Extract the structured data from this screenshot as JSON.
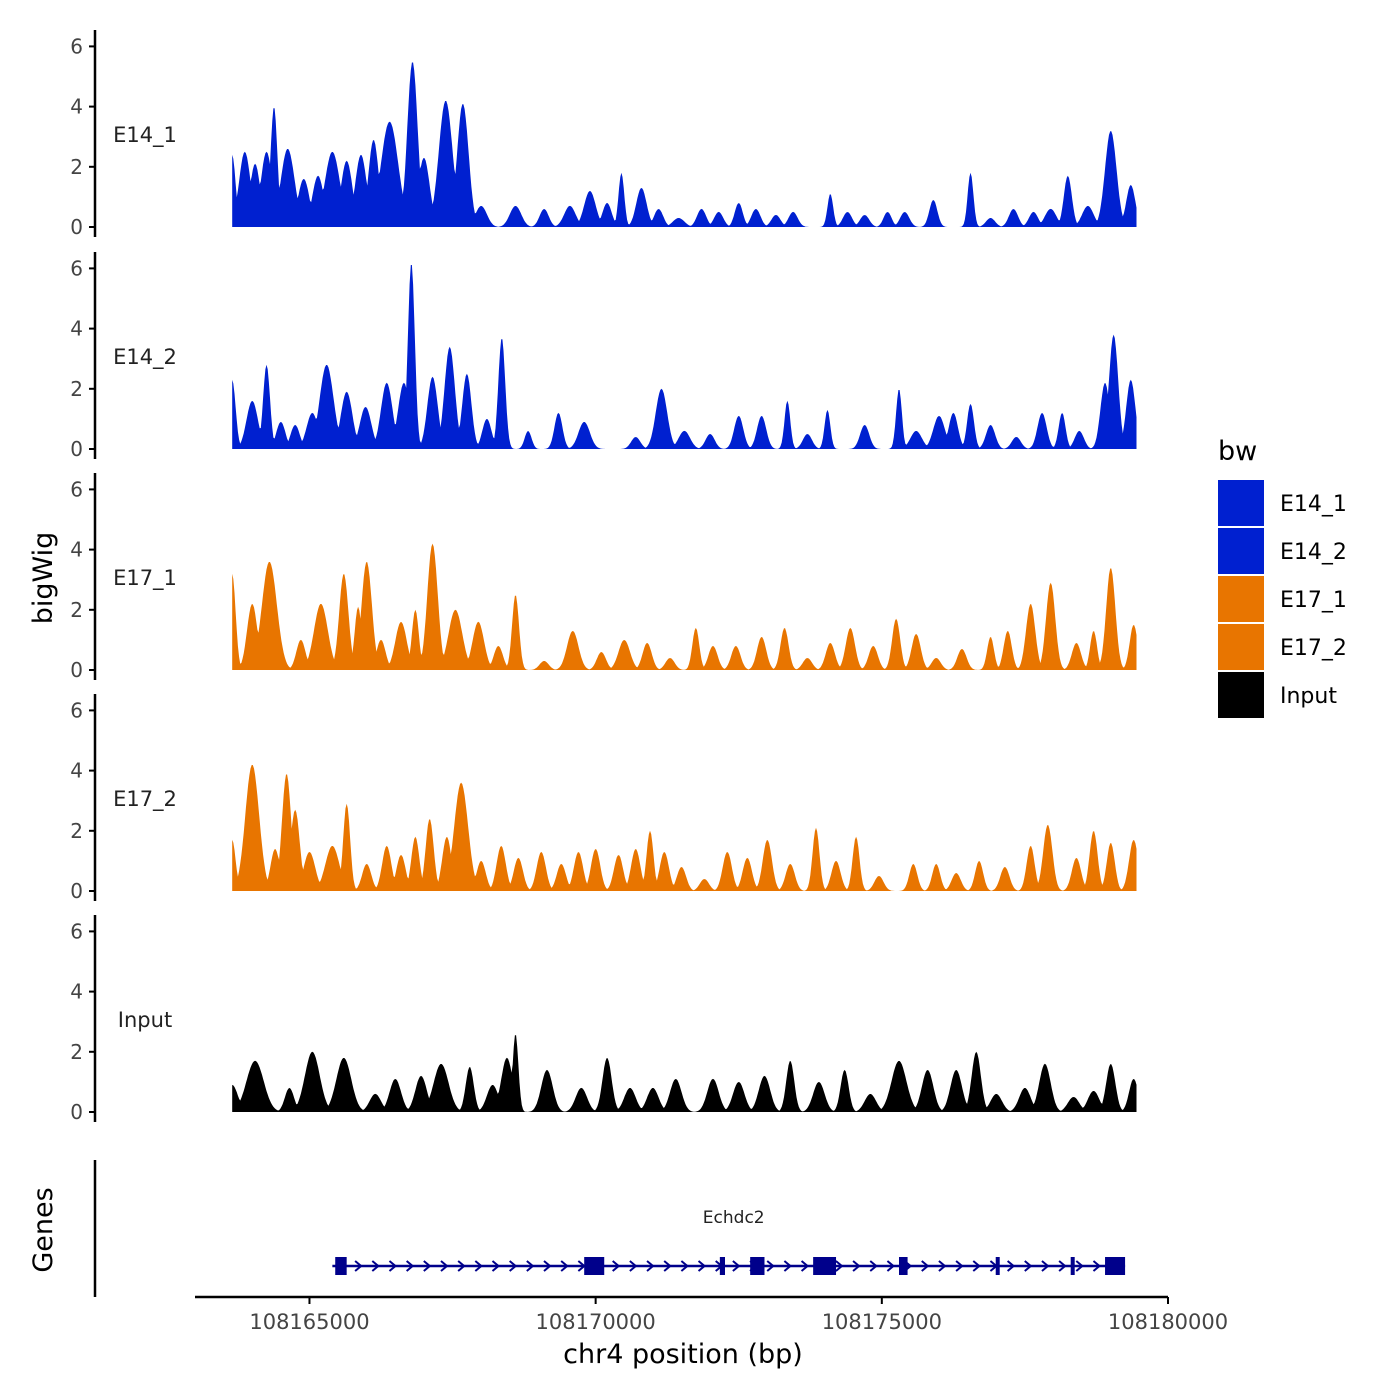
{
  "chart_data": {
    "type": "area",
    "y_axis_title": "bigWig",
    "genes_axis_title": "Genes",
    "xlabel": "chr4 position (bp)",
    "xlim": [
      108163000,
      108180000
    ],
    "x_ticks": [
      108165000,
      108170000,
      108175000,
      108180000
    ],
    "x_tick_labels": [
      "108165000",
      "108170000",
      "108175000",
      "108180000"
    ],
    "ylim": [
      0,
      6.5
    ],
    "y_ticks": [
      0,
      2,
      4,
      6
    ],
    "y_tick_labels": [
      "0",
      "2",
      "4",
      "6"
    ],
    "signal_start": 108163650,
    "signal_end": 108179450,
    "legend": {
      "title": "bw",
      "position": "right",
      "entries": [
        {
          "label": "E14_1",
          "color": "#0020D0"
        },
        {
          "label": "E14_2",
          "color": "#0020D0"
        },
        {
          "label": "E17_1",
          "color": "#E87500"
        },
        {
          "label": "E17_2",
          "color": "#E87500"
        },
        {
          "label": "Input",
          "color": "#000000"
        }
      ]
    },
    "tracks": [
      {
        "name": "E14_1",
        "color": "#0020D0",
        "peaks": [
          [
            108163650,
            2.4,
            60
          ],
          [
            108163870,
            2.5,
            100
          ],
          [
            108164050,
            2.1,
            90
          ],
          [
            108164250,
            2.5,
            100
          ],
          [
            108164380,
            4.0,
            60
          ],
          [
            108164620,
            2.6,
            120
          ],
          [
            108164900,
            1.6,
            100
          ],
          [
            108165150,
            1.7,
            100
          ],
          [
            108165400,
            2.5,
            130
          ],
          [
            108165650,
            2.2,
            100
          ],
          [
            108165900,
            2.4,
            100
          ],
          [
            108166120,
            2.9,
            90
          ],
          [
            108166400,
            3.5,
            150
          ],
          [
            108166800,
            5.5,
            90
          ],
          [
            108167000,
            2.3,
            100
          ],
          [
            108167380,
            4.2,
            120
          ],
          [
            108167680,
            4.1,
            100
          ],
          [
            108168000,
            0.7,
            100
          ],
          [
            108168600,
            0.7,
            100
          ],
          [
            108169100,
            0.6,
            80
          ],
          [
            108169550,
            0.7,
            100
          ],
          [
            108169900,
            1.2,
            100
          ],
          [
            108170200,
            0.8,
            80
          ],
          [
            108170450,
            1.8,
            50
          ],
          [
            108170800,
            1.3,
            90
          ],
          [
            108171100,
            0.6,
            80
          ],
          [
            108171450,
            0.3,
            100
          ],
          [
            108171850,
            0.6,
            80
          ],
          [
            108172150,
            0.5,
            80
          ],
          [
            108172500,
            0.8,
            70
          ],
          [
            108172800,
            0.6,
            80
          ],
          [
            108173150,
            0.4,
            80
          ],
          [
            108173450,
            0.5,
            80
          ],
          [
            108174100,
            1.1,
            50
          ],
          [
            108174400,
            0.5,
            80
          ],
          [
            108174700,
            0.4,
            80
          ],
          [
            108175100,
            0.5,
            70
          ],
          [
            108175400,
            0.5,
            80
          ],
          [
            108175900,
            0.9,
            70
          ],
          [
            108176550,
            1.8,
            50
          ],
          [
            108176900,
            0.3,
            80
          ],
          [
            108177300,
            0.6,
            80
          ],
          [
            108177650,
            0.5,
            80
          ],
          [
            108177950,
            0.6,
            100
          ],
          [
            108178250,
            1.7,
            70
          ],
          [
            108178600,
            0.7,
            100
          ],
          [
            108179000,
            3.2,
            100
          ],
          [
            108179350,
            1.4,
            80
          ]
        ]
      },
      {
        "name": "E14_2",
        "color": "#0020D0",
        "peaks": [
          [
            108163650,
            2.3,
            60
          ],
          [
            108164000,
            1.6,
            100
          ],
          [
            108164250,
            2.8,
            60
          ],
          [
            108164500,
            0.9,
            80
          ],
          [
            108164750,
            0.8,
            80
          ],
          [
            108165050,
            1.2,
            100
          ],
          [
            108165300,
            2.8,
            120
          ],
          [
            108165650,
            1.9,
            100
          ],
          [
            108165980,
            1.4,
            100
          ],
          [
            108166350,
            2.2,
            100
          ],
          [
            108166650,
            2.2,
            100
          ],
          [
            108166780,
            6.2,
            60
          ],
          [
            108167150,
            2.4,
            90
          ],
          [
            108167450,
            3.4,
            90
          ],
          [
            108167750,
            2.5,
            80
          ],
          [
            108168100,
            1.0,
            80
          ],
          [
            108168360,
            3.7,
            60
          ],
          [
            108168820,
            0.6,
            60
          ],
          [
            108169350,
            1.2,
            70
          ],
          [
            108169800,
            0.9,
            100
          ],
          [
            108170700,
            0.4,
            80
          ],
          [
            108171150,
            2.0,
            100
          ],
          [
            108171550,
            0.6,
            100
          ],
          [
            108172000,
            0.5,
            80
          ],
          [
            108172500,
            1.1,
            80
          ],
          [
            108172900,
            1.1,
            80
          ],
          [
            108173350,
            1.6,
            50
          ],
          [
            108173700,
            0.5,
            80
          ],
          [
            108174050,
            1.3,
            50
          ],
          [
            108174700,
            0.8,
            80
          ],
          [
            108175300,
            2.0,
            50
          ],
          [
            108175600,
            0.6,
            100
          ],
          [
            108176000,
            1.1,
            100
          ],
          [
            108176250,
            1.2,
            80
          ],
          [
            108176550,
            1.5,
            60
          ],
          [
            108176900,
            0.8,
            80
          ],
          [
            108177350,
            0.4,
            80
          ],
          [
            108177800,
            1.2,
            80
          ],
          [
            108178150,
            1.2,
            60
          ],
          [
            108178450,
            0.6,
            80
          ],
          [
            108178900,
            2.2,
            80
          ],
          [
            108179050,
            3.8,
            80
          ],
          [
            108179350,
            2.3,
            80
          ]
        ]
      },
      {
        "name": "E17_1",
        "color": "#E87500",
        "peaks": [
          [
            108163650,
            3.2,
            60
          ],
          [
            108164000,
            2.2,
            90
          ],
          [
            108164300,
            3.6,
            130
          ],
          [
            108164850,
            1.0,
            80
          ],
          [
            108165200,
            2.2,
            120
          ],
          [
            108165600,
            3.2,
            80
          ],
          [
            108165850,
            2.1,
            60
          ],
          [
            108166000,
            3.6,
            90
          ],
          [
            108166250,
            1.0,
            80
          ],
          [
            108166600,
            1.6,
            100
          ],
          [
            108166850,
            2.0,
            60
          ],
          [
            108167150,
            4.2,
            90
          ],
          [
            108167550,
            2.0,
            120
          ],
          [
            108167950,
            1.6,
            100
          ],
          [
            108168300,
            0.8,
            80
          ],
          [
            108168600,
            2.5,
            60
          ],
          [
            108169100,
            0.3,
            80
          ],
          [
            108169600,
            1.3,
            100
          ],
          [
            108170100,
            0.6,
            80
          ],
          [
            108170500,
            1.0,
            100
          ],
          [
            108170900,
            0.9,
            80
          ],
          [
            108171300,
            0.4,
            80
          ],
          [
            108171750,
            1.4,
            60
          ],
          [
            108172050,
            0.8,
            80
          ],
          [
            108172450,
            0.8,
            80
          ],
          [
            108172900,
            1.1,
            80
          ],
          [
            108173300,
            1.4,
            70
          ],
          [
            108173700,
            0.4,
            80
          ],
          [
            108174100,
            0.9,
            80
          ],
          [
            108174450,
            1.4,
            80
          ],
          [
            108174850,
            0.8,
            80
          ],
          [
            108175250,
            1.7,
            70
          ],
          [
            108175600,
            1.2,
            80
          ],
          [
            108175950,
            0.4,
            80
          ],
          [
            108176400,
            0.7,
            80
          ],
          [
            108176900,
            1.1,
            60
          ],
          [
            108177200,
            1.3,
            70
          ],
          [
            108177600,
            2.2,
            80
          ],
          [
            108177950,
            2.9,
            80
          ],
          [
            108178400,
            0.9,
            80
          ],
          [
            108178700,
            1.3,
            60
          ],
          [
            108179000,
            3.4,
            80
          ],
          [
            108179400,
            1.5,
            70
          ]
        ]
      },
      {
        "name": "E17_2",
        "color": "#E87500",
        "peaks": [
          [
            108163650,
            1.7,
            60
          ],
          [
            108164000,
            4.2,
            120
          ],
          [
            108164400,
            1.4,
            80
          ],
          [
            108164600,
            3.9,
            80
          ],
          [
            108164750,
            2.7,
            80
          ],
          [
            108165000,
            1.3,
            100
          ],
          [
            108165400,
            1.5,
            120
          ],
          [
            108165650,
            2.9,
            60
          ],
          [
            108166000,
            0.9,
            80
          ],
          [
            108166350,
            1.5,
            80
          ],
          [
            108166600,
            1.2,
            80
          ],
          [
            108166850,
            1.8,
            70
          ],
          [
            108167100,
            2.4,
            70
          ],
          [
            108167400,
            1.8,
            80
          ],
          [
            108167650,
            3.6,
            120
          ],
          [
            108168000,
            1.0,
            80
          ],
          [
            108168350,
            1.5,
            80
          ],
          [
            108168650,
            1.1,
            80
          ],
          [
            108169050,
            1.3,
            80
          ],
          [
            108169400,
            0.9,
            80
          ],
          [
            108169700,
            1.3,
            80
          ],
          [
            108170000,
            1.4,
            80
          ],
          [
            108170400,
            1.2,
            80
          ],
          [
            108170700,
            1.4,
            80
          ],
          [
            108170950,
            2.0,
            60
          ],
          [
            108171200,
            1.3,
            80
          ],
          [
            108171500,
            0.8,
            80
          ],
          [
            108171900,
            0.4,
            80
          ],
          [
            108172300,
            1.3,
            80
          ],
          [
            108172650,
            1.1,
            80
          ],
          [
            108173000,
            1.7,
            80
          ],
          [
            108173400,
            0.9,
            80
          ],
          [
            108173850,
            2.1,
            60
          ],
          [
            108174200,
            1.0,
            80
          ],
          [
            108174550,
            1.8,
            60
          ],
          [
            108174950,
            0.5,
            80
          ],
          [
            108175550,
            0.9,
            70
          ],
          [
            108175950,
            0.9,
            70
          ],
          [
            108176300,
            0.6,
            80
          ],
          [
            108176700,
            1.0,
            70
          ],
          [
            108177150,
            0.8,
            80
          ],
          [
            108177600,
            1.5,
            70
          ],
          [
            108177900,
            2.2,
            80
          ],
          [
            108178400,
            1.1,
            80
          ],
          [
            108178700,
            2.0,
            70
          ],
          [
            108179000,
            1.6,
            70
          ],
          [
            108179400,
            1.7,
            80
          ]
        ]
      },
      {
        "name": "Input",
        "color": "#000000",
        "peaks": [
          [
            108163650,
            0.9,
            100
          ],
          [
            108164050,
            1.7,
            150
          ],
          [
            108164650,
            0.8,
            80
          ],
          [
            108165050,
            2.0,
            130
          ],
          [
            108165600,
            1.8,
            130
          ],
          [
            108166150,
            0.6,
            100
          ],
          [
            108166500,
            1.1,
            100
          ],
          [
            108166950,
            1.2,
            100
          ],
          [
            108167300,
            1.6,
            130
          ],
          [
            108167800,
            1.5,
            70
          ],
          [
            108168200,
            0.9,
            100
          ],
          [
            108168450,
            1.8,
            100
          ],
          [
            108168600,
            2.6,
            50
          ],
          [
            108169150,
            1.4,
            100
          ],
          [
            108169750,
            0.8,
            100
          ],
          [
            108170200,
            1.8,
            80
          ],
          [
            108170600,
            0.8,
            100
          ],
          [
            108171000,
            0.8,
            100
          ],
          [
            108171400,
            1.1,
            100
          ],
          [
            108172050,
            1.1,
            100
          ],
          [
            108172500,
            1.0,
            100
          ],
          [
            108172950,
            1.2,
            100
          ],
          [
            108173400,
            1.7,
            70
          ],
          [
            108173900,
            1.0,
            100
          ],
          [
            108174350,
            1.4,
            70
          ],
          [
            108174800,
            0.6,
            100
          ],
          [
            108175300,
            1.7,
            130
          ],
          [
            108175800,
            1.4,
            100
          ],
          [
            108176300,
            1.4,
            100
          ],
          [
            108176650,
            2.0,
            80
          ],
          [
            108177000,
            0.6,
            100
          ],
          [
            108177500,
            0.8,
            100
          ],
          [
            108177850,
            1.6,
            100
          ],
          [
            108178350,
            0.5,
            100
          ],
          [
            108178700,
            0.7,
            100
          ],
          [
            108179000,
            1.6,
            80
          ],
          [
            108179400,
            1.1,
            80
          ]
        ]
      }
    ],
    "gene": {
      "name": "Echdc2",
      "start": 108165400,
      "end": 108179250,
      "color": "#00008B",
      "exons": [
        [
          108165450,
          108165650
        ],
        [
          108169800,
          108170150
        ],
        [
          108172170,
          108172260
        ],
        [
          108172700,
          108172950
        ],
        [
          108173800,
          108174200
        ],
        [
          108175300,
          108175450
        ],
        [
          108176990,
          108177040
        ],
        [
          108178300,
          108178330
        ],
        [
          108178900,
          108179250
        ]
      ]
    }
  }
}
